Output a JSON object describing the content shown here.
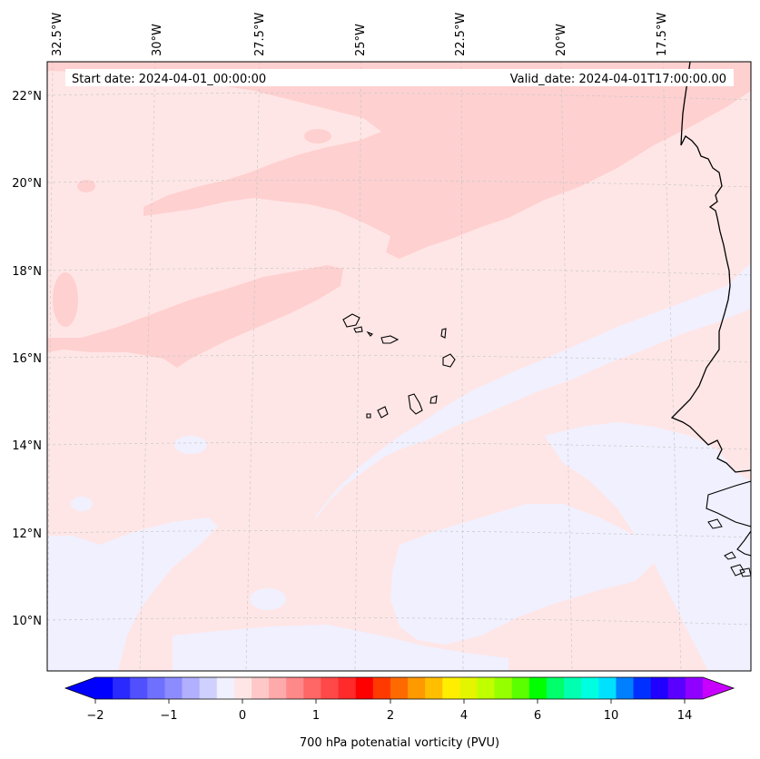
{
  "header": {
    "start_date": "Start date: 2024-04-01_00:00:00",
    "valid_date": "Valid_date: 2024-04-01T17:00:00.00"
  },
  "map": {
    "longitude_labels": [
      "32.5°W",
      "30°W",
      "27.5°W",
      "25°W",
      "22.5°W",
      "20°W",
      "17.5°W"
    ],
    "latitude_labels": [
      "22°N",
      "20°N",
      "18°N",
      "16°N",
      "14°N",
      "12°N",
      "10°N"
    ],
    "colors": {
      "background": "#ffe6e6",
      "positive_band": "#ffd0d0",
      "negative_band": "#f0f0ff",
      "coastline": "#000000",
      "gridline": "#c8c8c8"
    }
  },
  "colorbar": {
    "label": "700 hPa potenatial vorticity (PVU)",
    "tick_labels": [
      "−2",
      "−1",
      "0",
      "1",
      "2",
      "4",
      "6",
      "10",
      "14"
    ],
    "colors": [
      "#0000ff",
      "#2a2aff",
      "#5050ff",
      "#7070ff",
      "#8c8cff",
      "#b0b0ff",
      "#d0d0ff",
      "#f0f0ff",
      "#ffe6e6",
      "#ffc8c8",
      "#ffaaaa",
      "#ff8888",
      "#ff6666",
      "#ff4848",
      "#ff2a2a",
      "#ff0000",
      "#ff3a00",
      "#ff6a00",
      "#ff9900",
      "#ffbf00",
      "#ffee00",
      "#e4f500",
      "#c0ff00",
      "#96ff00",
      "#5cff00",
      "#00ff00",
      "#00ff6a",
      "#00ffb0",
      "#00ffe0",
      "#00e0ff",
      "#0080ff",
      "#0030ff",
      "#2000ff",
      "#5a00ff",
      "#9000ff"
    ],
    "under_color": "#0000ff",
    "over_color": "#c800ff"
  }
}
